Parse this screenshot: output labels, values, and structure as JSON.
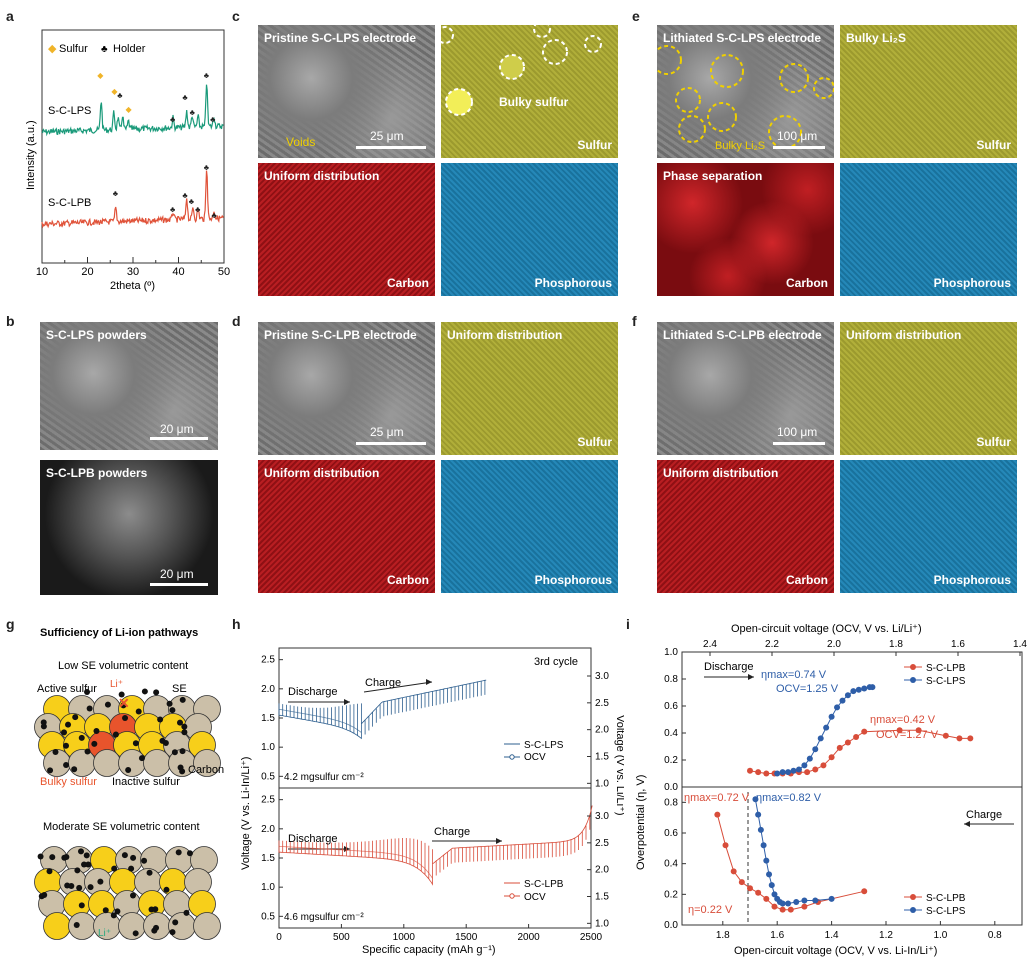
{
  "panel_letters": {
    "a": "a",
    "b": "b",
    "c": "c",
    "d": "d",
    "e": "e",
    "f": "f",
    "g": "g",
    "h": "h",
    "i": "i"
  },
  "panel_a": {
    "legend_sulfur": "Sulfur",
    "legend_holder": "Holder",
    "trace_top": "S-C-LPS",
    "trace_bottom": "S-C-LPB",
    "ylabel": "Intensity (a.u.)",
    "xlabel": "2theta (º)",
    "xticks": [
      "10",
      "20",
      "30",
      "40",
      "50"
    ],
    "colors": {
      "lps": "#1a9a7a",
      "lpb": "#e0533a",
      "sulfur_marker": "#f0b429"
    }
  },
  "panel_b": {
    "top_label": "S-C-LPS powders",
    "top_scale": "20 μm",
    "bottom_label": "S-C-LPB powders",
    "bottom_scale": "20 μm"
  },
  "panel_c": {
    "sem_label": "Pristine S-C-LPS electrode",
    "voids_label": "Voids",
    "scale": "25 μm",
    "bulky_label": "Bulky sulfur",
    "sulfur": "Sulfur",
    "uniform": "Uniform distribution",
    "carbon": "Carbon",
    "phosphorous": "Phosphorous"
  },
  "panel_d": {
    "sem_label": "Pristine S-C-LPB electrode",
    "scale": "25 μm",
    "uniform_top": "Uniform distribution",
    "sulfur": "Sulfur",
    "uniform_bottom": "Uniform distribution",
    "carbon": "Carbon",
    "phosphorous": "Phosphorous"
  },
  "panel_e": {
    "sem_label": "Lithiated S-C-LPS electrode",
    "bulky_label": "Bulky Li₂S",
    "bulky_inset": "Bulky Li₂S",
    "scale": "100 μm",
    "sulfur": "Sulfur",
    "separation": "Phase separation",
    "carbon": "Carbon",
    "phosphorous": "Phosphorous"
  },
  "panel_f": {
    "sem_label": "Lithiated S-C-LPB electrode",
    "scale": "100 μm",
    "uniform_top": "Uniform distribution",
    "sulfur": "Sulfur",
    "uniform_bottom": "Uniform distribution",
    "carbon": "Carbon",
    "phosphorous": "Phosphorous"
  },
  "panel_g": {
    "title": "Sufficiency of Li-ion pathways",
    "low": "Low SE volumetric content",
    "moderate": "Moderate SE volumetric content",
    "active": "Active sulfur",
    "se": "SE",
    "carbon": "Carbon",
    "bulky": "Bulky sulfur",
    "inactive": "Inactive sulfur",
    "li_top": "Li⁺",
    "li_bottom": "Li⁺",
    "colors": {
      "sulfur": "#f7cf1a",
      "se": "#cbbfa8",
      "inactive": "#e8542c"
    }
  },
  "panel_h": {
    "cycle": "3rd cycle",
    "ylabel_left": "Voltage (V vs. Li-In/Li⁺)",
    "ylabel_right": "Voltage (V vs. Li/Li⁺)",
    "xlabel": "Specific capacity (mAh g⁻¹)",
    "xticks": [
      "0",
      "500",
      "1000",
      "1500",
      "2000",
      "2500"
    ],
    "yticks_left": [
      "0.5",
      "1.0",
      "1.5",
      "2.0",
      "2.5"
    ],
    "yticks_right": [
      "1.0",
      "1.5",
      "2.0",
      "2.5",
      "3.0"
    ],
    "top_discharge": "Discharge",
    "top_charge": "Charge",
    "top_loading": "4.2 mgsulfur cm⁻²",
    "top_legend": [
      "S-C-LPS",
      "OCV"
    ],
    "bottom_discharge": "Discharge",
    "bottom_charge": "Charge",
    "bottom_loading": "4.6 mgsulfur cm⁻²",
    "bottom_legend": [
      "S-C-LPB",
      "OCV"
    ],
    "colors": {
      "lps": "#2e5f8f",
      "lpb": "#d84d3a"
    }
  },
  "panel_i": {
    "top_axis_label": "Open-circuit voltage (OCV, V vs. Li/Li⁺)",
    "top_ticks": [
      "2.4",
      "2.2",
      "2.0",
      "1.8",
      "1.6",
      "1.4"
    ],
    "bottom_axis_label": "Open-circuit voltage (OCV, V vs. Li-In/Li⁺)",
    "bottom_ticks": [
      "1.8",
      "1.6",
      "1.4",
      "1.2",
      "1.0",
      "0.8"
    ],
    "ylabel": "Overpotential (η, V)",
    "yticks_top": [
      "0.0",
      "0.2",
      "0.4",
      "0.6",
      "0.8",
      "1.0"
    ],
    "yticks_bottom": [
      "0.0",
      "0.2",
      "0.4",
      "0.6",
      "0.8"
    ],
    "discharge": "Discharge",
    "charge": "Charge",
    "ann_lps_top1": "ηmax=0.74 V",
    "ann_lps_top2": "OCV=1.25 V",
    "ann_lpb_top1": "ηmax=0.42 V",
    "ann_lpb_top2": "OCV=1.27 V",
    "ann_lpb_bot": "ηmax=0.72 V",
    "ann_lps_bot": "ηmax=0.82 V",
    "ann_eta": "η=0.22 V",
    "legend": [
      "S-C-LPB",
      "S-C-LPS"
    ],
    "colors": {
      "lpb": "#d84d3a",
      "lps": "#2e5ea8"
    }
  },
  "chart_data": [
    {
      "type": "line",
      "panel": "a",
      "x_range": [
        10,
        50
      ],
      "series": [
        {
          "name": "S-C-LPS"
        },
        {
          "name": "S-C-LPB"
        }
      ]
    },
    {
      "type": "line",
      "panel": "h",
      "x_range": [
        0,
        2500
      ],
      "y_range": [
        0.5,
        2.5
      ],
      "series": [
        {
          "name": "S-C-LPS"
        },
        {
          "name": "S-C-LPB"
        },
        {
          "name": "OCV"
        }
      ]
    },
    {
      "type": "scatter",
      "panel": "i-discharge",
      "series": [
        {
          "name": "S-C-LPB",
          "x": [
            1.7,
            1.67,
            1.64,
            1.61,
            1.58,
            1.55,
            1.52,
            1.49,
            1.46,
            1.43,
            1.4,
            1.37,
            1.34,
            1.31,
            1.28,
            1.15,
            1.08,
            0.98,
            0.93,
            0.89
          ],
          "y": [
            0.12,
            0.11,
            0.1,
            0.1,
            0.1,
            0.1,
            0.11,
            0.11,
            0.13,
            0.16,
            0.22,
            0.29,
            0.33,
            0.37,
            0.41,
            0.42,
            0.42,
            0.38,
            0.36,
            0.36
          ]
        },
        {
          "name": "S-C-LPS",
          "x": [
            1.6,
            1.58,
            1.56,
            1.54,
            1.52,
            1.5,
            1.48,
            1.46,
            1.44,
            1.42,
            1.4,
            1.38,
            1.36,
            1.34,
            1.32,
            1.3,
            1.28,
            1.26,
            1.25
          ],
          "y": [
            0.1,
            0.11,
            0.11,
            0.12,
            0.13,
            0.16,
            0.21,
            0.28,
            0.36,
            0.44,
            0.52,
            0.59,
            0.64,
            0.68,
            0.71,
            0.72,
            0.73,
            0.74,
            0.74
          ]
        }
      ]
    },
    {
      "type": "scatter",
      "panel": "i-charge",
      "series": [
        {
          "name": "S-C-LPB",
          "x": [
            1.82,
            1.79,
            1.76,
            1.73,
            1.7,
            1.67,
            1.64,
            1.61,
            1.58,
            1.55,
            1.5,
            1.45,
            1.28
          ],
          "y": [
            0.72,
            0.52,
            0.35,
            0.28,
            0.24,
            0.21,
            0.17,
            0.12,
            0.1,
            0.1,
            0.12,
            0.15,
            0.22
          ]
        },
        {
          "name": "S-C-LPS",
          "x": [
            1.68,
            1.67,
            1.66,
            1.65,
            1.64,
            1.63,
            1.62,
            1.61,
            1.6,
            1.59,
            1.58,
            1.56,
            1.53,
            1.5,
            1.46,
            1.4
          ],
          "y": [
            0.82,
            0.72,
            0.62,
            0.52,
            0.42,
            0.33,
            0.26,
            0.2,
            0.17,
            0.15,
            0.14,
            0.14,
            0.15,
            0.16,
            0.16,
            0.17
          ]
        }
      ]
    }
  ]
}
